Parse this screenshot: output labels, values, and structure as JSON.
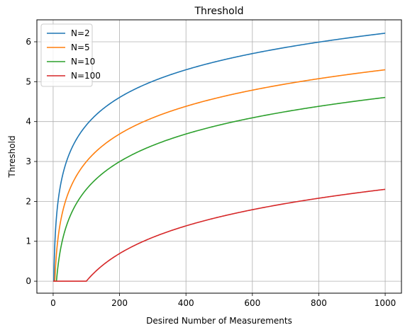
{
  "chart_data": {
    "type": "line",
    "title": "Threshold",
    "xlabel": "Desired Number of Measurements",
    "ylabel": "Threshold",
    "xlim": [
      -49,
      1049
    ],
    "ylim": [
      -0.3,
      6.55
    ],
    "xticks": [
      0,
      200,
      400,
      600,
      800,
      1000
    ],
    "yticks": [
      0,
      1,
      2,
      3,
      4,
      5,
      6
    ],
    "grid": true,
    "legend_position": "top-left",
    "series": [
      {
        "name": "N=2",
        "color": "#1f77b4",
        "x": [
          2,
          5,
          10,
          20,
          50,
          100,
          200,
          300,
          400,
          500,
          600,
          700,
          800,
          900,
          1000
        ],
        "y": [
          0,
          0.92,
          1.61,
          2.3,
          3.22,
          3.91,
          4.61,
          5.01,
          5.3,
          5.52,
          5.7,
          5.86,
          5.99,
          6.11,
          6.21
        ]
      },
      {
        "name": "N=5",
        "color": "#ff7f0e",
        "x": [
          5,
          10,
          20,
          50,
          100,
          200,
          300,
          400,
          500,
          600,
          700,
          800,
          900,
          1000
        ],
        "y": [
          0,
          0.69,
          1.39,
          2.3,
          3.0,
          3.69,
          4.09,
          4.38,
          4.61,
          4.79,
          4.94,
          5.08,
          5.19,
          5.3
        ]
      },
      {
        "name": "N=10",
        "color": "#2ca02c",
        "x": [
          10,
          20,
          50,
          100,
          200,
          300,
          400,
          500,
          600,
          700,
          800,
          900,
          1000
        ],
        "y": [
          0,
          0.69,
          1.61,
          2.3,
          3.0,
          3.4,
          3.69,
          3.91,
          4.09,
          4.25,
          4.38,
          4.5,
          4.61
        ]
      },
      {
        "name": "N=100",
        "color": "#d62728",
        "x": [
          0,
          100,
          150,
          200,
          300,
          400,
          500,
          600,
          700,
          800,
          900,
          1000
        ],
        "y": [
          0,
          0,
          0.41,
          0.69,
          1.1,
          1.39,
          1.61,
          1.79,
          1.95,
          2.08,
          2.2,
          2.3
        ]
      }
    ]
  }
}
